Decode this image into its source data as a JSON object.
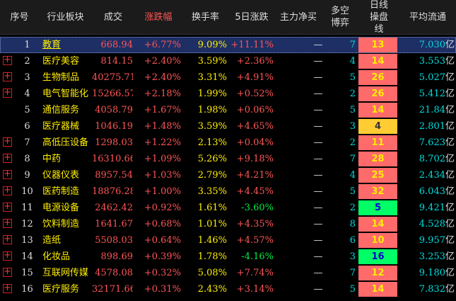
{
  "header": {
    "columns": [
      "序号",
      "行业板块",
      "成交",
      "涨跌幅",
      "换手率",
      "5日涨跌",
      "主力净买",
      "多空博弈",
      "日线操盘线",
      "平均流通"
    ]
  },
  "rows": [
    {
      "no": "1",
      "name": "教育",
      "volume": "668.94",
      "change": "+6.77%",
      "turnover": "9.09%",
      "change5d": "+11.11%",
      "net": "—",
      "game": "7",
      "line": "13",
      "line_color": "red",
      "flow": "7.030",
      "unit": "亿",
      "expandable": false,
      "selected": true
    },
    {
      "no": "2",
      "name": "医疗美容",
      "volume": "814.15",
      "change": "+2.40%",
      "turnover": "3.59%",
      "change5d": "+2.36%",
      "net": "—",
      "game": "4",
      "line": "14",
      "line_color": "red",
      "flow": "3.553",
      "unit": "亿",
      "expandable": true,
      "selected": false
    },
    {
      "no": "3",
      "name": "生物制品",
      "volume": "40275.71",
      "change": "+2.40%",
      "turnover": "3.31%",
      "change5d": "+4.91%",
      "net": "—",
      "game": "5",
      "line": "26",
      "line_color": "red",
      "flow": "5.027",
      "unit": "亿",
      "expandable": true,
      "selected": false
    },
    {
      "no": "4",
      "name": "电气智能化",
      "volume": "15266.57",
      "change": "+2.18%",
      "turnover": "1.99%",
      "change5d": "+0.52%",
      "net": "—",
      "game": "2",
      "line": "26",
      "line_color": "red",
      "flow": "5.412",
      "unit": "亿",
      "expandable": true,
      "selected": false
    },
    {
      "no": "5",
      "name": "通信服务",
      "volume": "4058.79",
      "change": "+1.67%",
      "turnover": "1.98%",
      "change5d": "+0.06%",
      "net": "—",
      "game": "5",
      "line": "14",
      "line_color": "red",
      "flow": "21.84",
      "unit": "亿",
      "expandable": false,
      "selected": false
    },
    {
      "no": "6",
      "name": "医疗器械",
      "volume": "1046.19",
      "change": "+1.48%",
      "turnover": "3.59%",
      "change5d": "+4.65%",
      "net": "—",
      "game": "3",
      "line": "4",
      "line_color": "yellow",
      "flow": "2.801",
      "unit": "亿",
      "expandable": false,
      "selected": false
    },
    {
      "no": "7",
      "name": "高低压设备",
      "volume": "1298.03",
      "change": "+1.22%",
      "turnover": "2.13%",
      "change5d": "+0.04%",
      "net": "—",
      "game": "2",
      "line": "11",
      "line_color": "red",
      "flow": "7.623",
      "unit": "亿",
      "expandable": true,
      "selected": false
    },
    {
      "no": "8",
      "name": "中药",
      "volume": "16310.66",
      "change": "+1.09%",
      "turnover": "5.26%",
      "change5d": "+9.18%",
      "net": "—",
      "game": "7",
      "line": "28",
      "line_color": "red",
      "flow": "8.702",
      "unit": "亿",
      "expandable": true,
      "selected": false
    },
    {
      "no": "9",
      "name": "仪器仪表",
      "volume": "8957.54",
      "change": "+1.03%",
      "turnover": "2.79%",
      "change5d": "+4.21%",
      "net": "—",
      "game": "4",
      "line": "25",
      "line_color": "red",
      "flow": "2.434",
      "unit": "亿",
      "expandable": true,
      "selected": false
    },
    {
      "no": "10",
      "name": "医药制造",
      "volume": "18876.28",
      "change": "+1.00%",
      "turnover": "3.35%",
      "change5d": "+4.45%",
      "net": "—",
      "game": "5",
      "line": "32",
      "line_color": "red",
      "flow": "6.043",
      "unit": "亿",
      "expandable": true,
      "selected": false
    },
    {
      "no": "11",
      "name": "电源设备",
      "volume": "2462.42",
      "change": "+0.92%",
      "turnover": "1.61%",
      "change5d": "-3.60%",
      "net": "—",
      "game": "2",
      "line": "5",
      "line_color": "green",
      "flow": "9.421",
      "unit": "亿",
      "expandable": true,
      "selected": false
    },
    {
      "no": "12",
      "name": "饮料制造",
      "volume": "1641.67",
      "change": "+0.68%",
      "turnover": "1.01%",
      "change5d": "+4.35%",
      "net": "—",
      "game": "8",
      "line": "14",
      "line_color": "red",
      "flow": "4.528",
      "unit": "亿",
      "expandable": true,
      "selected": false
    },
    {
      "no": "13",
      "name": "造纸",
      "volume": "5508.03",
      "change": "+0.64%",
      "turnover": "1.46%",
      "change5d": "+4.57%",
      "net": "—",
      "game": "6",
      "line": "10",
      "line_color": "red",
      "flow": "9.957",
      "unit": "亿",
      "expandable": true,
      "selected": false
    },
    {
      "no": "14",
      "name": "化妆品",
      "volume": "898.69",
      "change": "+0.39%",
      "turnover": "1.78%",
      "change5d": "-4.16%",
      "net": "—",
      "game": "3",
      "line": "16",
      "line_color": "green",
      "flow": "3.253",
      "unit": "亿",
      "expandable": true,
      "selected": false
    },
    {
      "no": "15",
      "name": "互联网传媒",
      "volume": "4578.08",
      "change": "+0.32%",
      "turnover": "5.08%",
      "change5d": "+7.74%",
      "net": "—",
      "game": "7",
      "line": "12",
      "line_color": "red",
      "flow": "9.180",
      "unit": "亿",
      "expandable": true,
      "selected": false
    },
    {
      "no": "16",
      "name": "医疗服务",
      "volume": "32171.66",
      "change": "+0.31%",
      "turnover": "2.43%",
      "change5d": "+3.14%",
      "net": "—",
      "game": "5",
      "line": "14",
      "line_color": "red",
      "flow": "7.832",
      "unit": "亿",
      "expandable": true,
      "selected": false
    }
  ]
}
